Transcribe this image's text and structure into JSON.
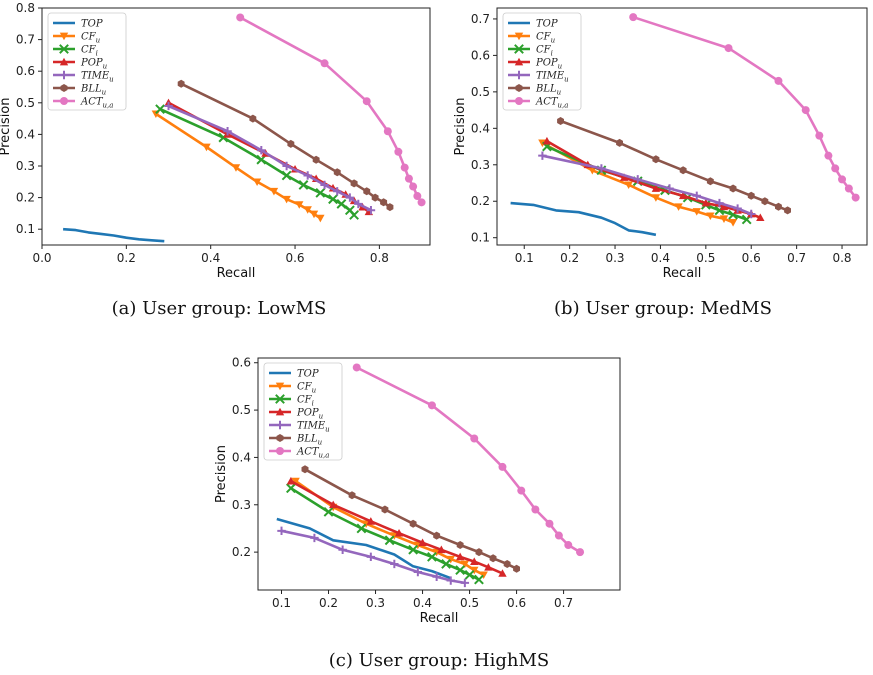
{
  "chart_data": [
    {
      "type": "line",
      "caption": "(a) User group: LowMS",
      "xlabel": "Recall",
      "ylabel": "Precision",
      "xlim": [
        0.0,
        0.92
      ],
      "ylim": [
        0.05,
        0.8
      ],
      "xticks": [
        "0.0",
        "0.2",
        "0.4",
        "0.6",
        "0.8"
      ],
      "xtickvals": [
        0.0,
        0.2,
        0.4,
        0.6,
        0.8
      ],
      "yticks": [
        "0.1",
        "0.2",
        "0.3",
        "0.4",
        "0.5",
        "0.6",
        "0.7",
        "0.8"
      ],
      "ytickvals": [
        0.1,
        0.2,
        0.3,
        0.4,
        0.5,
        0.6,
        0.7,
        0.8
      ],
      "grid": false,
      "legend_position": "top-left",
      "series": [
        {
          "name": "TOP",
          "sub": "",
          "color": "#1f77b4",
          "marker": "none",
          "x": [
            0.05,
            0.08,
            0.11,
            0.14,
            0.17,
            0.2,
            0.23,
            0.26,
            0.29
          ],
          "y": [
            0.1,
            0.097,
            0.09,
            0.085,
            0.08,
            0.073,
            0.068,
            0.065,
            0.062
          ]
        },
        {
          "name": "CF",
          "sub": "u",
          "color": "#ff7f0e",
          "marker": "tri_down",
          "x": [
            0.27,
            0.39,
            0.46,
            0.51,
            0.55,
            0.58,
            0.61,
            0.63,
            0.645,
            0.66
          ],
          "y": [
            0.465,
            0.36,
            0.295,
            0.25,
            0.22,
            0.195,
            0.178,
            0.162,
            0.148,
            0.135
          ]
        },
        {
          "name": "CF",
          "sub": "i",
          "color": "#2ca02c",
          "marker": "x",
          "x": [
            0.28,
            0.43,
            0.52,
            0.58,
            0.62,
            0.66,
            0.69,
            0.71,
            0.73,
            0.74
          ],
          "y": [
            0.48,
            0.39,
            0.32,
            0.27,
            0.24,
            0.215,
            0.195,
            0.18,
            0.16,
            0.145
          ]
        },
        {
          "name": "POP",
          "sub": "u",
          "color": "#d62728",
          "marker": "tri_up",
          "x": [
            0.3,
            0.44,
            0.53,
            0.6,
            0.65,
            0.69,
            0.72,
            0.74,
            0.76,
            0.775
          ],
          "y": [
            0.5,
            0.4,
            0.34,
            0.29,
            0.26,
            0.23,
            0.21,
            0.19,
            0.17,
            0.155
          ]
        },
        {
          "name": "TIME",
          "sub": "u",
          "color": "#9467bd",
          "marker": "plus",
          "x": [
            0.3,
            0.44,
            0.52,
            0.58,
            0.63,
            0.67,
            0.7,
            0.73,
            0.75,
            0.78
          ],
          "y": [
            0.49,
            0.41,
            0.35,
            0.3,
            0.27,
            0.24,
            0.22,
            0.2,
            0.18,
            0.16
          ]
        },
        {
          "name": "BLL",
          "sub": "u",
          "color": "#8c564b",
          "marker": "hexagon",
          "x": [
            0.33,
            0.5,
            0.59,
            0.65,
            0.7,
            0.74,
            0.77,
            0.79,
            0.81,
            0.825
          ],
          "y": [
            0.56,
            0.45,
            0.37,
            0.32,
            0.28,
            0.245,
            0.22,
            0.2,
            0.185,
            0.17
          ]
        },
        {
          "name": "ACT",
          "sub": "u,a",
          "color": "#e377c2",
          "marker": "circle",
          "x": [
            0.47,
            0.67,
            0.77,
            0.82,
            0.845,
            0.86,
            0.87,
            0.88,
            0.89,
            0.9
          ],
          "y": [
            0.77,
            0.625,
            0.505,
            0.41,
            0.345,
            0.295,
            0.26,
            0.235,
            0.205,
            0.185
          ]
        }
      ]
    },
    {
      "type": "line",
      "caption": "(b) User group: MedMS",
      "xlabel": "Recall",
      "ylabel": "Precision",
      "xlim": [
        0.04,
        0.855
      ],
      "ylim": [
        0.08,
        0.73
      ],
      "xticks": [
        "0.1",
        "0.2",
        "0.3",
        "0.4",
        "0.5",
        "0.6",
        "0.7",
        "0.8"
      ],
      "xtickvals": [
        0.1,
        0.2,
        0.3,
        0.4,
        0.5,
        0.6,
        0.7,
        0.8
      ],
      "yticks": [
        "0.1",
        "0.2",
        "0.3",
        "0.4",
        "0.5",
        "0.6",
        "0.7"
      ],
      "ytickvals": [
        0.1,
        0.2,
        0.3,
        0.4,
        0.5,
        0.6,
        0.7
      ],
      "grid": false,
      "legend_position": "top-left",
      "series": [
        {
          "name": "TOP",
          "sub": "",
          "color": "#1f77b4",
          "marker": "none",
          "x": [
            0.07,
            0.12,
            0.17,
            0.22,
            0.27,
            0.3,
            0.33,
            0.36,
            0.39
          ],
          "y": [
            0.195,
            0.19,
            0.175,
            0.17,
            0.155,
            0.14,
            0.12,
            0.115,
            0.108
          ]
        },
        {
          "name": "CF",
          "sub": "u",
          "color": "#ff7f0e",
          "marker": "tri_down",
          "x": [
            0.14,
            0.25,
            0.33,
            0.39,
            0.44,
            0.48,
            0.51,
            0.54,
            0.56
          ],
          "y": [
            0.36,
            0.285,
            0.245,
            0.21,
            0.185,
            0.172,
            0.16,
            0.152,
            0.142
          ]
        },
        {
          "name": "CF",
          "sub": "i",
          "color": "#2ca02c",
          "marker": "x",
          "x": [
            0.15,
            0.27,
            0.35,
            0.41,
            0.46,
            0.5,
            0.53,
            0.56,
            0.59
          ],
          "y": [
            0.35,
            0.285,
            0.255,
            0.23,
            0.21,
            0.19,
            0.175,
            0.163,
            0.15
          ]
        },
        {
          "name": "POP",
          "sub": "u",
          "color": "#d62728",
          "marker": "tri_up",
          "x": [
            0.15,
            0.24,
            0.32,
            0.39,
            0.45,
            0.5,
            0.54,
            0.57,
            0.6,
            0.62
          ],
          "y": [
            0.365,
            0.3,
            0.265,
            0.235,
            0.215,
            0.195,
            0.185,
            0.175,
            0.165,
            0.155
          ]
        },
        {
          "name": "TIME",
          "sub": "u",
          "color": "#9467bd",
          "marker": "plus",
          "x": [
            0.14,
            0.27,
            0.35,
            0.42,
            0.48,
            0.53,
            0.57,
            0.6
          ],
          "y": [
            0.325,
            0.29,
            0.26,
            0.235,
            0.215,
            0.195,
            0.18,
            0.165
          ]
        },
        {
          "name": "BLL",
          "sub": "u",
          "color": "#8c564b",
          "marker": "hexagon",
          "x": [
            0.18,
            0.31,
            0.39,
            0.45,
            0.51,
            0.56,
            0.6,
            0.63,
            0.66,
            0.68
          ],
          "y": [
            0.42,
            0.36,
            0.315,
            0.285,
            0.255,
            0.235,
            0.215,
            0.2,
            0.185,
            0.175
          ]
        },
        {
          "name": "ACT",
          "sub": "u,a",
          "color": "#e377c2",
          "marker": "circle",
          "x": [
            0.34,
            0.55,
            0.66,
            0.72,
            0.75,
            0.77,
            0.785,
            0.8,
            0.815,
            0.83
          ],
          "y": [
            0.705,
            0.62,
            0.53,
            0.45,
            0.38,
            0.325,
            0.29,
            0.26,
            0.235,
            0.21
          ]
        }
      ]
    },
    {
      "type": "line",
      "caption": "(c) User group: HighMS",
      "xlabel": "Recall",
      "ylabel": "Precision",
      "xlim": [
        0.05,
        0.82
      ],
      "ylim": [
        0.12,
        0.61
      ],
      "xticks": [
        "0.1",
        "0.2",
        "0.3",
        "0.4",
        "0.5",
        "0.6",
        "0.7"
      ],
      "xtickvals": [
        0.1,
        0.2,
        0.3,
        0.4,
        0.5,
        0.6,
        0.7
      ],
      "yticks": [
        "0.2",
        "0.3",
        "0.4",
        "0.5",
        "0.6"
      ],
      "ytickvals": [
        0.2,
        0.3,
        0.4,
        0.5,
        0.6
      ],
      "grid": false,
      "legend_position": "top-left",
      "series": [
        {
          "name": "TOP",
          "sub": "",
          "color": "#1f77b4",
          "marker": "none",
          "x": [
            0.09,
            0.16,
            0.21,
            0.28,
            0.34,
            0.38,
            0.42,
            0.46
          ],
          "y": [
            0.27,
            0.25,
            0.225,
            0.215,
            0.195,
            0.17,
            0.16,
            0.145
          ]
        },
        {
          "name": "CF",
          "sub": "u",
          "color": "#ff7f0e",
          "marker": "tri_down",
          "x": [
            0.13,
            0.21,
            0.28,
            0.34,
            0.39,
            0.43,
            0.46,
            0.49,
            0.51,
            0.53
          ],
          "y": [
            0.35,
            0.295,
            0.26,
            0.235,
            0.215,
            0.2,
            0.185,
            0.175,
            0.162,
            0.152
          ]
        },
        {
          "name": "CF",
          "sub": "i",
          "color": "#2ca02c",
          "marker": "x",
          "x": [
            0.12,
            0.2,
            0.27,
            0.33,
            0.38,
            0.42,
            0.45,
            0.48,
            0.5,
            0.52
          ],
          "y": [
            0.335,
            0.285,
            0.25,
            0.225,
            0.205,
            0.19,
            0.175,
            0.162,
            0.152,
            0.142
          ]
        },
        {
          "name": "POP",
          "sub": "u",
          "color": "#d62728",
          "marker": "tri_up",
          "x": [
            0.12,
            0.21,
            0.29,
            0.35,
            0.4,
            0.44,
            0.48,
            0.51,
            0.54,
            0.57
          ],
          "y": [
            0.35,
            0.3,
            0.265,
            0.24,
            0.22,
            0.205,
            0.19,
            0.18,
            0.168,
            0.155
          ]
        },
        {
          "name": "TIME",
          "sub": "u",
          "color": "#9467bd",
          "marker": "plus",
          "x": [
            0.1,
            0.17,
            0.23,
            0.29,
            0.34,
            0.39,
            0.43,
            0.46,
            0.49
          ],
          "y": [
            0.245,
            0.23,
            0.205,
            0.19,
            0.175,
            0.158,
            0.148,
            0.14,
            0.135
          ]
        },
        {
          "name": "BLL",
          "sub": "u",
          "color": "#8c564b",
          "marker": "hexagon",
          "x": [
            0.15,
            0.25,
            0.32,
            0.38,
            0.43,
            0.48,
            0.52,
            0.55,
            0.58,
            0.6
          ],
          "y": [
            0.375,
            0.32,
            0.29,
            0.26,
            0.235,
            0.215,
            0.2,
            0.187,
            0.175,
            0.165
          ]
        },
        {
          "name": "ACT",
          "sub": "u,a",
          "color": "#e377c2",
          "marker": "circle",
          "x": [
            0.26,
            0.42,
            0.51,
            0.57,
            0.61,
            0.64,
            0.67,
            0.69,
            0.71,
            0.735
          ],
          "y": [
            0.59,
            0.51,
            0.44,
            0.38,
            0.33,
            0.29,
            0.26,
            0.235,
            0.215,
            0.2
          ]
        }
      ]
    }
  ]
}
